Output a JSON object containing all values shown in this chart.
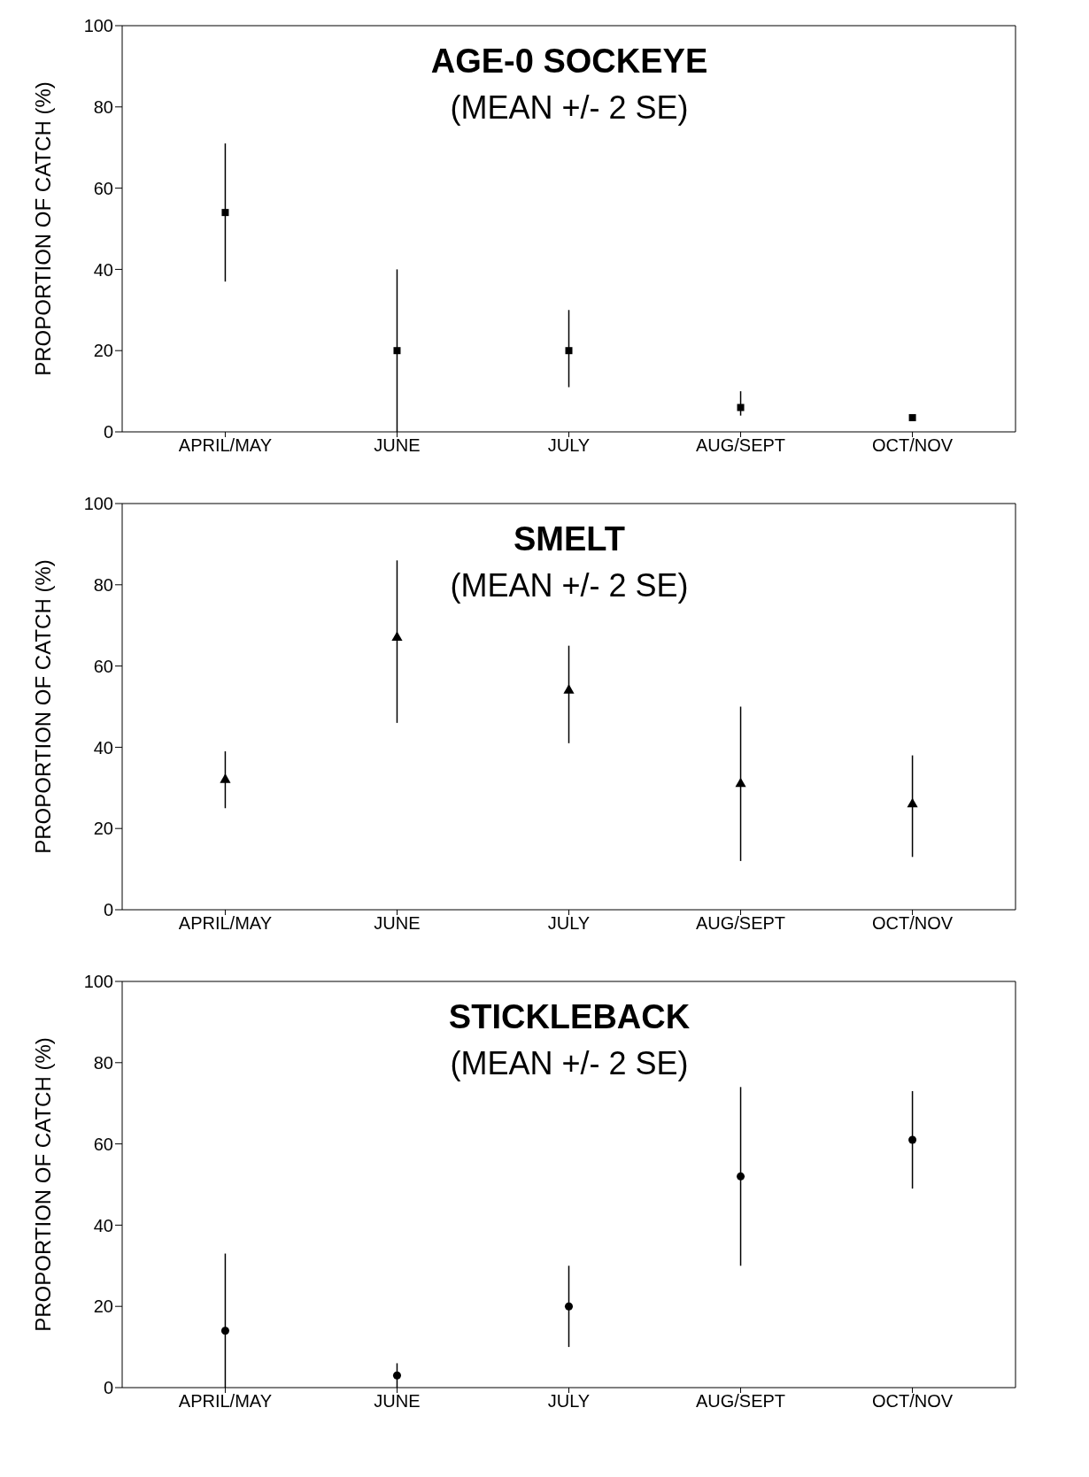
{
  "chart_data": [
    {
      "type": "scatter",
      "title": "AGE-0 SOCKEYE",
      "subtitle": "(MEAN +/- 2 SE)",
      "ylabel": "PROPORTION OF CATCH (%)",
      "categories": [
        "APRIL/MAY",
        "JUNE",
        "JULY",
        "AUG/SEPT",
        "OCT/NOV"
      ],
      "values": [
        54,
        20,
        20,
        6,
        3.5
      ],
      "errors": [
        [
          37,
          71
        ],
        [
          0,
          40
        ],
        [
          11,
          30
        ],
        [
          4,
          10
        ],
        null
      ],
      "color": "#000000",
      "marker": "square",
      "ylim": [
        0,
        100
      ],
      "yticks": [
        0,
        20,
        40,
        60,
        80,
        100
      ],
      "grid": false,
      "legend": false
    },
    {
      "type": "scatter",
      "title": "SMELT",
      "subtitle": "(MEAN +/- 2 SE)",
      "ylabel": "PROPORTION OF CATCH (%)",
      "categories": [
        "APRIL/MAY",
        "JUNE",
        "JULY",
        "AUG/SEPT",
        "OCT/NOV"
      ],
      "values": [
        32,
        67,
        54,
        31,
        26
      ],
      "errors": [
        [
          25,
          39
        ],
        [
          46,
          86
        ],
        [
          41,
          65
        ],
        [
          12,
          50
        ],
        [
          13,
          38
        ]
      ],
      "color": "#000000",
      "marker": "triangle",
      "ylim": [
        0,
        100
      ],
      "yticks": [
        0,
        20,
        40,
        60,
        80,
        100
      ],
      "grid": false,
      "legend": false
    },
    {
      "type": "scatter",
      "title": "STICKLEBACK",
      "subtitle": "(MEAN +/- 2 SE)",
      "ylabel": "PROPORTION OF CATCH (%)",
      "categories": [
        "APRIL/MAY",
        "JUNE",
        "JULY",
        "AUG/SEPT",
        "OCT/NOV"
      ],
      "values": [
        14,
        3,
        20,
        52,
        61
      ],
      "errors": [
        [
          0,
          33
        ],
        [
          0,
          6
        ],
        [
          10,
          30
        ],
        [
          30,
          74
        ],
        [
          49,
          73
        ]
      ],
      "color": "#000000",
      "marker": "circle",
      "ylim": [
        0,
        100
      ],
      "yticks": [
        0,
        20,
        40,
        60,
        80,
        100
      ],
      "grid": false,
      "legend": false
    }
  ]
}
